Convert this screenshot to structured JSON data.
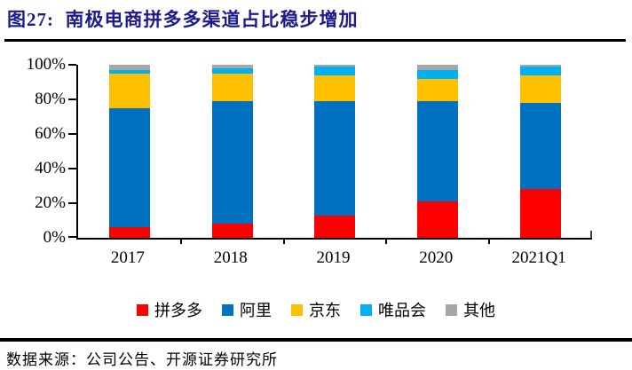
{
  "figure": {
    "title": "图27:  南极电商拼多多渠道占比稳步增加",
    "source": "数据来源：公司公告、开源证券研究所"
  },
  "chart_data": {
    "type": "bar",
    "stacked": true,
    "normalized_percent": true,
    "title": "南极电商拼多多渠道占比稳步增加",
    "categories": [
      "2017",
      "2018",
      "2019",
      "2020",
      "2021Q1"
    ],
    "series": [
      {
        "name": "拼多多",
        "color": "#ff0000",
        "values": [
          6,
          8,
          13,
          21,
          28
        ]
      },
      {
        "name": "阿里",
        "color": "#0070c0",
        "values": [
          69,
          71,
          66,
          58,
          50
        ]
      },
      {
        "name": "京东",
        "color": "#ffc000",
        "values": [
          20,
          16,
          15,
          13,
          16
        ]
      },
      {
        "name": "唯品会",
        "color": "#00b0f0",
        "values": [
          2,
          3,
          5,
          5,
          5
        ]
      },
      {
        "name": "其他",
        "color": "#a6a6a6",
        "values": [
          3,
          2,
          1,
          3,
          1
        ]
      }
    ],
    "xlabel": "",
    "ylabel": "",
    "ylim": [
      0,
      100
    ],
    "y_ticks": [
      "100%",
      "80%",
      "60%",
      "40%",
      "20%",
      "0%"
    ],
    "grid": false,
    "legend_position": "bottom",
    "accent_title_color": "#1b1a8e"
  }
}
